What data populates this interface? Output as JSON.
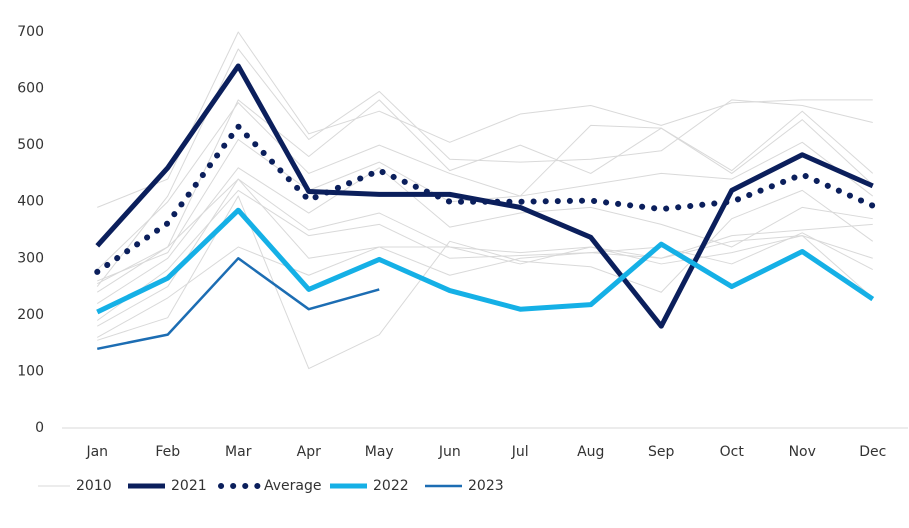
{
  "chart_data": {
    "type": "line",
    "categories": [
      "Jan",
      "Feb",
      "Mar",
      "Apr",
      "May",
      "Jun",
      "Jul",
      "Aug",
      "Sep",
      "Oct",
      "Nov",
      "Dec"
    ],
    "series": [
      {
        "name": "2010",
        "color": "#d9d9d9",
        "style": "thin",
        "values": [
          390,
          440,
          700,
          520,
          560,
          505,
          555,
          570,
          535,
          575,
          580,
          580
        ]
      },
      {
        "color": "#d9d9d9",
        "style": "thin",
        "values": [
          250,
          410,
          670,
          510,
          595,
          475,
          470,
          475,
          490,
          580,
          570,
          540
        ]
      },
      {
        "color": "#d9d9d9",
        "style": "thin",
        "values": [
          255,
          320,
          580,
          480,
          580,
          455,
          500,
          450,
          530,
          455,
          560,
          450
        ]
      },
      {
        "color": "#d9d9d9",
        "style": "thin",
        "values": [
          280,
          400,
          575,
          450,
          500,
          450,
          410,
          535,
          530,
          450,
          545,
          430
        ]
      },
      {
        "color": "#d9d9d9",
        "style": "thin",
        "values": [
          260,
          310,
          510,
          420,
          470,
          400,
          410,
          430,
          450,
          440,
          505,
          410
        ]
      },
      {
        "color": "#d9d9d9",
        "style": "thin",
        "values": [
          220,
          300,
          460,
          380,
          460,
          355,
          380,
          390,
          360,
          320,
          390,
          370
        ]
      },
      {
        "color": "#d9d9d9",
        "style": "thin",
        "values": [
          240,
          320,
          440,
          350,
          380,
          320,
          310,
          320,
          300,
          340,
          350,
          360
        ]
      },
      {
        "color": "#d9d9d9",
        "style": "thin",
        "values": [
          190,
          280,
          420,
          340,
          360,
          300,
          305,
          310,
          300,
          330,
          340,
          300
        ]
      },
      {
        "color": "#d9d9d9",
        "style": "thin",
        "values": [
          155,
          195,
          410,
          105,
          165,
          330,
          295,
          285,
          240,
          370,
          420,
          330
        ]
      },
      {
        "color": "#d9d9d9",
        "style": "thin",
        "values": [
          160,
          230,
          320,
          270,
          320,
          270,
          300,
          310,
          320,
          290,
          345,
          280
        ]
      },
      {
        "color": "#d9d9d9",
        "style": "thin",
        "values": [
          180,
          250,
          440,
          300,
          320,
          320,
          290,
          320,
          290,
          310,
          340,
          230
        ]
      },
      {
        "name": "2021",
        "color": "#0b1f5c",
        "style": "bold",
        "values": [
          322,
          460,
          640,
          418,
          413,
          413,
          390,
          337,
          180,
          420,
          483,
          428
        ]
      },
      {
        "name": "Average",
        "color": "#0b1f5c",
        "style": "dotted",
        "values": [
          276,
          362,
          533,
          403,
          455,
          400,
          400,
          402,
          387,
          400,
          448,
          393
        ]
      },
      {
        "name": "2022",
        "color": "#15b0e6",
        "style": "bold",
        "values": [
          205,
          265,
          385,
          245,
          298,
          243,
          210,
          218,
          325,
          250,
          312,
          228
        ]
      },
      {
        "name": "2023",
        "color": "#1c6db3",
        "style": "medium",
        "values": [
          140,
          165,
          300,
          210,
          245,
          null,
          null,
          null,
          null,
          null,
          null,
          null
        ]
      }
    ],
    "ylim": [
      0,
      700
    ],
    "yticks": [
      0,
      100,
      200,
      300,
      400,
      500,
      600,
      700
    ],
    "grid": false
  }
}
